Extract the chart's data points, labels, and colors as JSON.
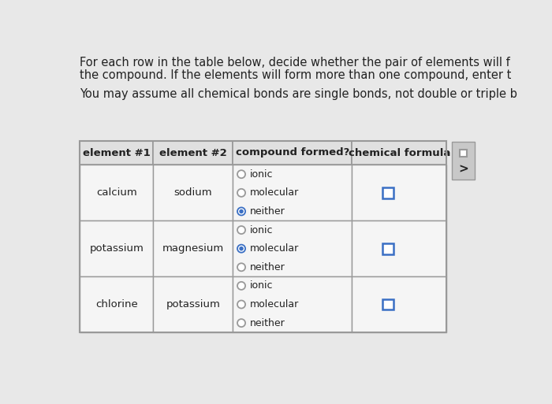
{
  "background_color": "#e8e8e8",
  "text_color": "#222222",
  "header_text_line1": "For each row in the table below, decide whether the pair of elements will f",
  "header_text_line2": "the compound. If the elements will form more than one compound, enter t",
  "sub_text": "You may assume all chemical bonds are single bonds, not double or triple b",
  "col_headers": [
    "element #1",
    "element #2",
    "compound formed?",
    "chemical formula"
  ],
  "rows": [
    {
      "el1": "calcium",
      "el2": "sodium",
      "options": [
        "ionic",
        "molecular",
        "neither"
      ],
      "selected": 2
    },
    {
      "el1": "potassium",
      "el2": "magnesium",
      "options": [
        "ionic",
        "molecular",
        "neither"
      ],
      "selected": 1
    },
    {
      "el1": "chlorine",
      "el2": "potassium",
      "options": [
        "ionic",
        "molecular",
        "neither"
      ],
      "selected": -1
    }
  ],
  "header_bg": "#e0e0e0",
  "cell_bg": "#f5f5f5",
  "border_color": "#999999",
  "radio_fill": "#3a6fc4",
  "radio_empty": "#cccccc",
  "checkbox_color": "#3a6fc4",
  "side_panel_bg": "#c8c8c8",
  "font_size_body": 10.5,
  "font_size_table_hdr": 9.5,
  "font_size_cell": 9.5,
  "font_size_radio": 9.0
}
